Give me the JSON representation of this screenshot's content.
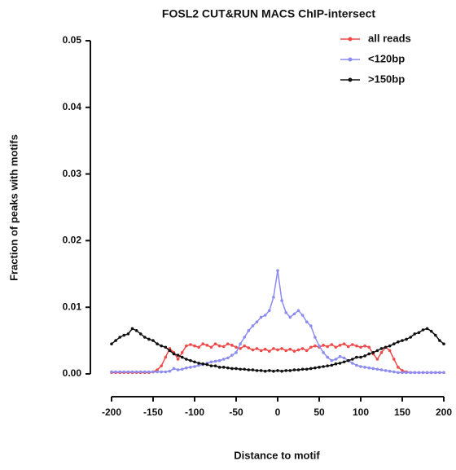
{
  "chart_data": {
    "type": "line",
    "title": "FOSL2 CUT&RUN MACS ChIP-intersect",
    "x_label": "Distance to motif",
    "y_label": "Fraction of peaks with motifs",
    "x": [
      -200,
      -195,
      -190,
      -185,
      -180,
      -175,
      -170,
      -165,
      -160,
      -155,
      -150,
      -145,
      -140,
      -135,
      -130,
      -125,
      -120,
      -115,
      -110,
      -105,
      -100,
      -95,
      -90,
      -85,
      -80,
      -75,
      -70,
      -65,
      -60,
      -55,
      -50,
      -45,
      -40,
      -35,
      -30,
      -25,
      -20,
      -15,
      -10,
      -5,
      0,
      5,
      10,
      15,
      20,
      25,
      30,
      35,
      40,
      45,
      50,
      55,
      60,
      65,
      70,
      75,
      80,
      85,
      90,
      95,
      100,
      105,
      110,
      115,
      120,
      125,
      130,
      135,
      140,
      145,
      150,
      155,
      160,
      165,
      170,
      175,
      180,
      185,
      190,
      195,
      200
    ],
    "series": [
      {
        "name": "all reads",
        "color": "#ef4a4a",
        "values": [
          0.0002,
          0.0002,
          0.0002,
          0.0002,
          0.0002,
          0.0002,
          0.0002,
          0.0002,
          0.0002,
          0.0002,
          0.0003,
          0.0006,
          0.0012,
          0.0025,
          0.0038,
          0.0032,
          0.0022,
          0.0032,
          0.0042,
          0.0044,
          0.0042,
          0.004,
          0.0045,
          0.0043,
          0.004,
          0.0045,
          0.0042,
          0.0041,
          0.0045,
          0.0043,
          0.004,
          0.0038,
          0.0042,
          0.0039,
          0.0036,
          0.0038,
          0.0035,
          0.0037,
          0.0034,
          0.0038,
          0.0036,
          0.0038,
          0.0035,
          0.0037,
          0.0034,
          0.0036,
          0.0038,
          0.0035,
          0.004,
          0.0042,
          0.004,
          0.0043,
          0.0041,
          0.0044,
          0.004,
          0.0043,
          0.0045,
          0.0041,
          0.0044,
          0.0042,
          0.004,
          0.0042,
          0.004,
          0.003,
          0.0022,
          0.0032,
          0.004,
          0.0035,
          0.0022,
          0.001,
          0.0005,
          0.0003,
          0.0002,
          0.0002,
          0.0002,
          0.0002,
          0.0002,
          0.0002,
          0.0002,
          0.0002,
          0.0002
        ]
      },
      {
        "name": "<120bp",
        "color": "#8c8cf2",
        "values": [
          0.0003,
          0.0003,
          0.0003,
          0.0003,
          0.0003,
          0.0003,
          0.0003,
          0.0003,
          0.0003,
          0.0003,
          0.0003,
          0.0003,
          0.0003,
          0.0003,
          0.0004,
          0.0008,
          0.0006,
          0.0007,
          0.0009,
          0.001,
          0.0011,
          0.0013,
          0.0014,
          0.0016,
          0.0018,
          0.0019,
          0.002,
          0.0022,
          0.0024,
          0.0028,
          0.0032,
          0.0045,
          0.0055,
          0.0065,
          0.0072,
          0.0078,
          0.0085,
          0.0088,
          0.0095,
          0.0115,
          0.0155,
          0.011,
          0.0092,
          0.0085,
          0.009,
          0.0095,
          0.0088,
          0.0078,
          0.0072,
          0.0055,
          0.0042,
          0.0032,
          0.0025,
          0.002,
          0.0022,
          0.0026,
          0.0024,
          0.002,
          0.0016,
          0.0013,
          0.0011,
          0.001,
          0.0009,
          0.0008,
          0.0007,
          0.0006,
          0.0005,
          0.0004,
          0.0003,
          0.0002,
          0.0002,
          0.0002,
          0.0002,
          0.0002,
          0.0002,
          0.0002,
          0.0002,
          0.0002,
          0.0002,
          0.0002,
          0.0002
        ]
      },
      {
        "name": ">150bp",
        "color": "#111111",
        "values": [
          0.0045,
          0.005,
          0.0055,
          0.0058,
          0.006,
          0.0068,
          0.0065,
          0.006,
          0.0055,
          0.0052,
          0.005,
          0.0045,
          0.0042,
          0.004,
          0.0035,
          0.003,
          0.0028,
          0.0025,
          0.0022,
          0.002,
          0.0018,
          0.0016,
          0.0015,
          0.0014,
          0.0012,
          0.0012,
          0.001,
          0.001,
          0.0009,
          0.0008,
          0.0008,
          0.0007,
          0.0007,
          0.0006,
          0.0006,
          0.0005,
          0.0005,
          0.0004,
          0.0005,
          0.0004,
          0.0005,
          0.0004,
          0.0005,
          0.0005,
          0.0006,
          0.0006,
          0.0007,
          0.0007,
          0.0008,
          0.0009,
          0.001,
          0.0011,
          0.0012,
          0.0013,
          0.0015,
          0.0016,
          0.0018,
          0.002,
          0.0022,
          0.0025,
          0.0025,
          0.0027,
          0.003,
          0.0032,
          0.0035,
          0.0038,
          0.004,
          0.0042,
          0.0045,
          0.0048,
          0.005,
          0.0052,
          0.0055,
          0.006,
          0.0062,
          0.0066,
          0.0068,
          0.0064,
          0.0058,
          0.005,
          0.0045
        ]
      }
    ],
    "xlim": [
      -200,
      200
    ],
    "xticks": [
      -200,
      -150,
      -100,
      -50,
      0,
      50,
      100,
      150,
      200
    ],
    "ylim": [
      0,
      0.05
    ],
    "yticks": [
      {
        "value": 0,
        "label": "0.00"
      },
      {
        "value": 0.01,
        "label": "0.01"
      },
      {
        "value": 0.02,
        "label": "0.02"
      },
      {
        "value": 0.03,
        "label": "0.03"
      },
      {
        "value": 0.04,
        "label": "0.04"
      },
      {
        "value": 0.05,
        "label": "0.05"
      }
    ],
    "legend": "top-right"
  }
}
